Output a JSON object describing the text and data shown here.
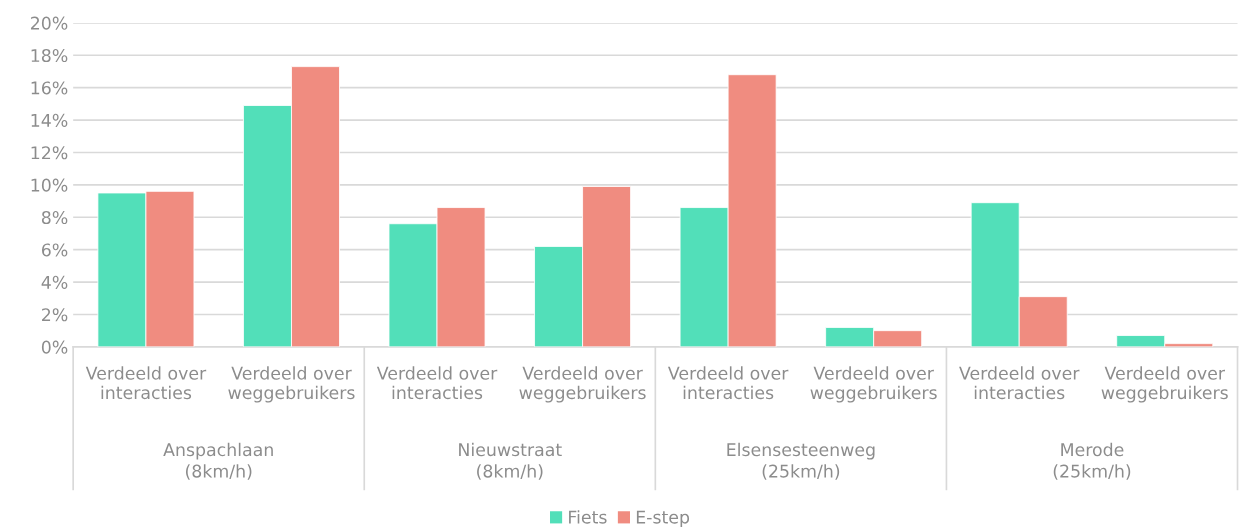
{
  "chart_data": {
    "type": "bar",
    "categories": [
      "Verdeeld over\ninteracties",
      "Verdeeld over\nweggebruikers",
      "Verdeeld over\ninteracties",
      "Verdeeld over\nweggebruikers",
      "Verdeeld over\ninteracties",
      "Verdeeld over\nweggebruikers",
      "Verdeeld over\ninteracties",
      "Verdeeld over\nweggebruikers"
    ],
    "series": [
      {
        "name": "Fiets",
        "color": "#52dfb9",
        "values": [
          9.5,
          14.9,
          7.6,
          6.2,
          8.6,
          1.2,
          8.9,
          0.7
        ]
      },
      {
        "name": "E-step",
        "color": "#f08c80",
        "values": [
          9.6,
          17.3,
          8.6,
          9.9,
          16.8,
          1.0,
          3.1,
          0.2
        ]
      }
    ],
    "annotations": [
      "Anspachlaan\n(8km/h)",
      "Nieuwstraat\n(8km/h)",
      "Elsensesteenweg\n(25km/h)",
      "Merode\n(25km/h)"
    ],
    "ylim": [
      0,
      20
    ],
    "yticks": [
      {
        "value": 0,
        "label": "0%"
      },
      {
        "value": 2,
        "label": "2%"
      },
      {
        "value": 4,
        "label": "4%"
      },
      {
        "value": 6,
        "label": "6%"
      },
      {
        "value": 8,
        "label": "8%"
      },
      {
        "value": 10,
        "label": "10%"
      },
      {
        "value": 12,
        "label": "12%"
      },
      {
        "value": 14,
        "label": "14%"
      },
      {
        "value": 16,
        "label": "16%"
      },
      {
        "value": 18,
        "label": "18%"
      },
      {
        "value": 20,
        "label": "20%"
      }
    ],
    "grid": "y",
    "legend": "bottom"
  }
}
